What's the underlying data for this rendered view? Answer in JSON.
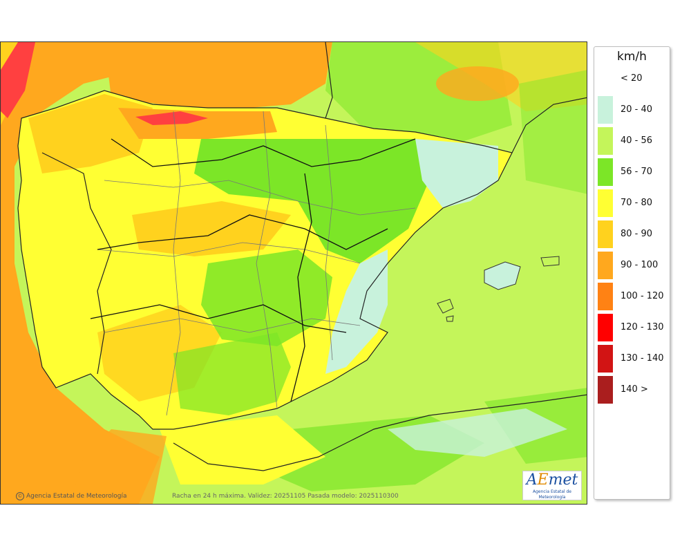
{
  "legend": {
    "unit": "km/h",
    "items": [
      {
        "label": "< 20",
        "color": ""
      },
      {
        "label": "20 - 40",
        "color": "#c8f2dc"
      },
      {
        "label": "40 - 56",
        "color": "#c4f55a"
      },
      {
        "label": "56 - 70",
        "color": "#7ce627"
      },
      {
        "label": "70 - 80",
        "color": "#ffff33"
      },
      {
        "label": "80 - 90",
        "color": "#ffd21e"
      },
      {
        "label": "90 - 100",
        "color": "#ffa81e"
      },
      {
        "label": "100 - 120",
        "color": "#ff8214"
      },
      {
        "label": "120 - 130",
        "color": "#ff0000"
      },
      {
        "label": "130 - 140",
        "color": "#d21414"
      },
      {
        "label": "140 >",
        "color": "#aa1e1e"
      }
    ]
  },
  "footer": {
    "copyright": "Agencia Estatal de Meteorología",
    "caption": "Racha en 24 h máxima. Validez: 20251105 Pasada modelo: 2025110300"
  },
  "logo": {
    "mark": "AEmet",
    "subtitle": "Agencia Estatal de Meteorología"
  },
  "colors": {
    "sea_low": "#c4f55a",
    "sea_moderate": "#7ce627",
    "orange": "#ffa81e",
    "yellow_orange": "#ffd21e",
    "yellow": "#ffff33",
    "light_wind": "#c8f2dc",
    "red": "#ff4040"
  }
}
